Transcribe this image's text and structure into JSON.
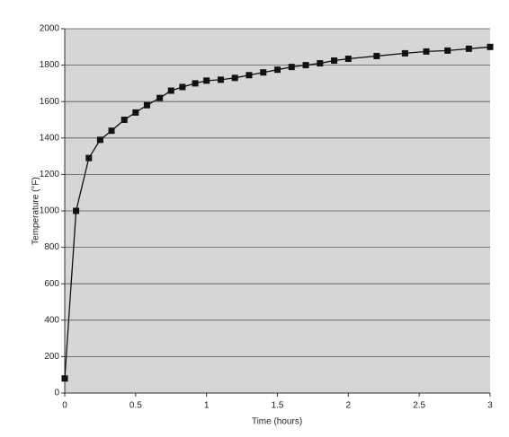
{
  "chart_data": {
    "type": "line",
    "x_label": "Time (hours)",
    "y_label": "Temperature (°F)",
    "x": [
      0,
      0.08,
      0.17,
      0.25,
      0.33,
      0.42,
      0.5,
      0.58,
      0.67,
      0.75,
      0.83,
      0.92,
      1.0,
      1.1,
      1.2,
      1.3,
      1.4,
      1.5,
      1.6,
      1.7,
      1.8,
      1.9,
      2.0,
      2.2,
      2.4,
      2.55,
      2.7,
      2.85,
      3.0
    ],
    "series": [
      {
        "color": "#111111",
        "values": [
          80,
          1000,
          1290,
          1390,
          1440,
          1500,
          1540,
          1580,
          1620,
          1660,
          1680,
          1700,
          1715,
          1720,
          1730,
          1745,
          1760,
          1775,
          1790,
          1800,
          1810,
          1825,
          1835,
          1850,
          1865,
          1875,
          1880,
          1890,
          1900
        ]
      }
    ],
    "xlim": [
      0,
      3
    ],
    "ylim": [
      0,
      2000
    ],
    "xticks": [
      0,
      0.5,
      1,
      1.5,
      2,
      2.5,
      3
    ],
    "yticks": [
      0,
      200,
      400,
      600,
      800,
      1000,
      1200,
      1400,
      1600,
      1800,
      2000
    ],
    "grid": true
  }
}
